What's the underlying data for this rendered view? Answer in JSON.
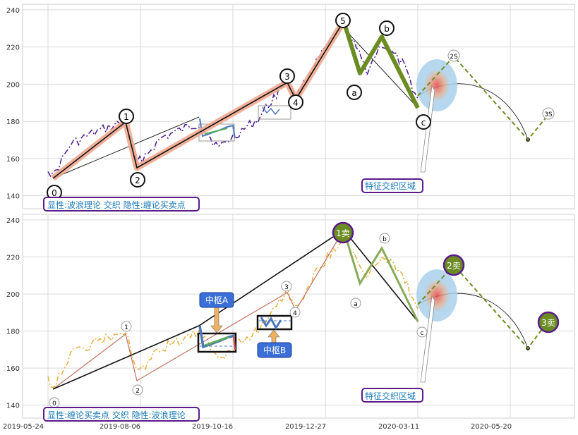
{
  "chart_data": [
    {
      "type": "line",
      "ylim": [
        133,
        243
      ],
      "y_ticks": [
        140,
        160,
        180,
        200,
        220,
        240
      ],
      "grid": true,
      "caption": "显性:波浪理论 交织 隐性:缠论买卖点",
      "callout": "特征交织区域",
      "wave_labels": [
        "0",
        "1",
        "2",
        "3",
        "4",
        "5",
        "a",
        "b",
        "c"
      ],
      "projection_labels": [
        "2S",
        "3S"
      ],
      "wave_points": [
        {
          "date": "2019-06-03",
          "y": 149,
          "label": "0"
        },
        {
          "date": "2019-07-22",
          "y": 179,
          "label": "1"
        },
        {
          "date": "2019-08-06",
          "y": 154,
          "label": "2"
        },
        {
          "date": "2019-12-09",
          "y": 201,
          "label": "3"
        },
        {
          "date": "2019-12-16",
          "y": 192,
          "label": "4"
        },
        {
          "date": "2020-01-17",
          "y": 231,
          "label": "5"
        },
        {
          "date": "2020-01-29",
          "y": 205,
          "label": "a"
        },
        {
          "date": "2020-02-10",
          "y": 225,
          "label": "b"
        },
        {
          "date": "2020-03-13",
          "y": 185,
          "label": "c"
        }
      ],
      "projection": [
        {
          "date": "2020-03-13",
          "y": 185
        },
        {
          "date": "2020-04-06",
          "y": 213,
          "label": "2S"
        },
        {
          "date": "2020-06-04",
          "y": 170
        },
        {
          "date": "2020-06-26",
          "y": 184,
          "label": "3S"
        }
      ]
    },
    {
      "type": "line",
      "ylim": [
        133,
        243
      ],
      "y_ticks": [
        140,
        160,
        180,
        200,
        220,
        240
      ],
      "x_ticks": [
        "2019-05-24",
        "2019-08-06",
        "2019-10-16",
        "2019-12-27",
        "2020-03-11",
        "2020-05-20"
      ],
      "grid": true,
      "caption": "显性:缠论买卖点 交织 隐性:波浪理论",
      "callout": "特征交织区域",
      "zhongshu_labels": [
        "中枢A",
        "中枢B"
      ],
      "sell_points": [
        "1卖",
        "2卖",
        "3卖"
      ],
      "wave_labels": [
        "0",
        "1",
        "2",
        "3",
        "4",
        "a",
        "b",
        "c"
      ]
    }
  ]
}
